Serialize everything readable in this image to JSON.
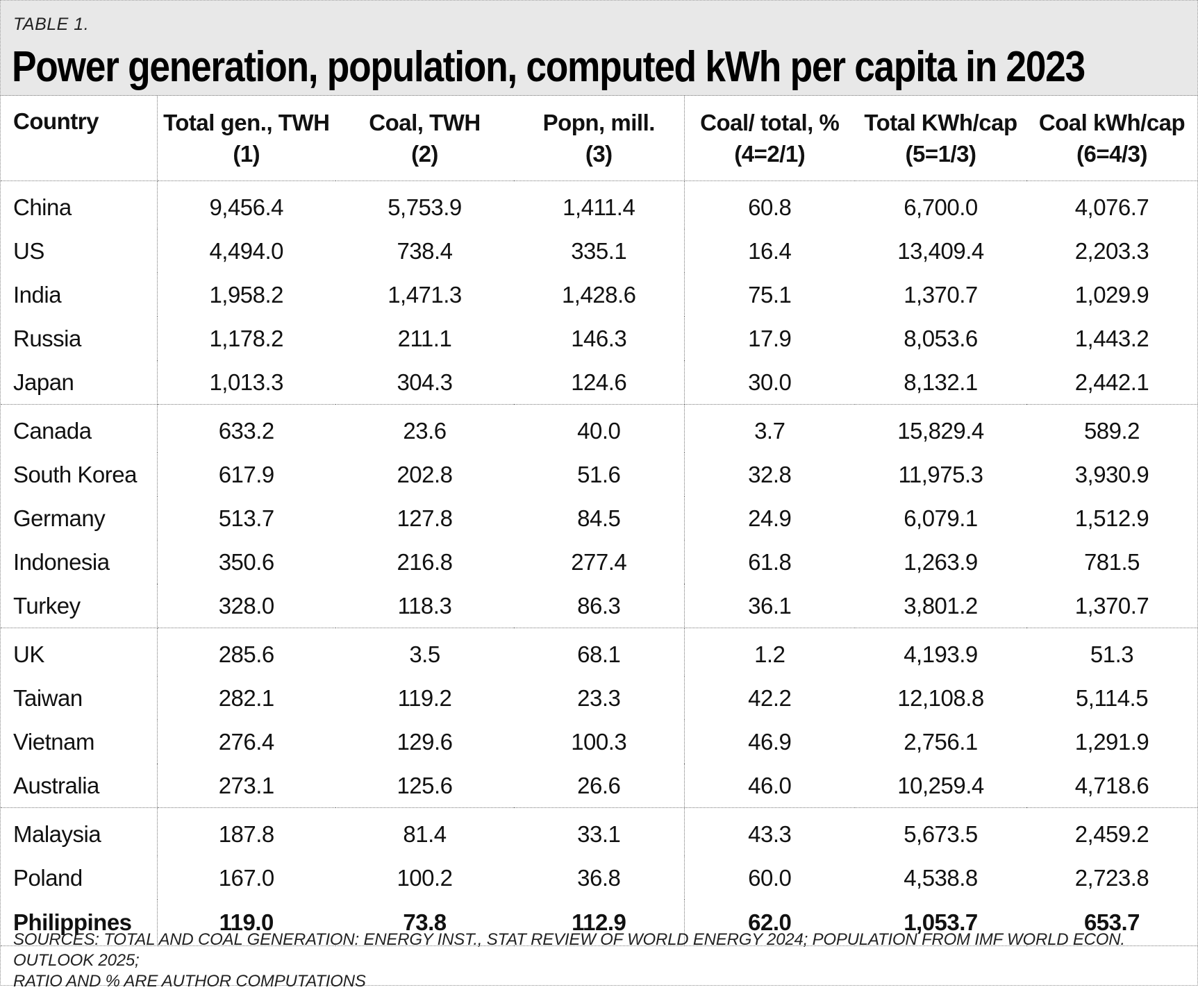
{
  "table_label": "TABLE 1.",
  "title": "Power generation, population, computed kWh per capita in 2023",
  "columns": [
    {
      "line1": "Country",
      "line2": ""
    },
    {
      "line1": "Total gen., TWH",
      "line2": "(1)"
    },
    {
      "line1": "Coal, TWH",
      "line2": "(2)"
    },
    {
      "line1": "Popn, mill.",
      "line2": "(3)"
    },
    {
      "line1": "Coal/ total, %",
      "line2": "(4=2/1)"
    },
    {
      "line1": "Total KWh/cap",
      "line2": "(5=1/3)"
    },
    {
      "line1": "Coal kWh/cap",
      "line2": "(6=4/3)"
    }
  ],
  "rows": [
    [
      "China",
      "9,456.4",
      "5,753.9",
      "1,411.4",
      "60.8",
      "6,700.0",
      "4,076.7"
    ],
    [
      "US",
      "4,494.0",
      "738.4",
      "335.1",
      "16.4",
      "13,409.4",
      "2,203.3"
    ],
    [
      "India",
      "1,958.2",
      "1,471.3",
      "1,428.6",
      "75.1",
      "1,370.7",
      "1,029.9"
    ],
    [
      "Russia",
      "1,178.2",
      "211.1",
      "146.3",
      "17.9",
      "8,053.6",
      "1,443.2"
    ],
    [
      "Japan",
      "1,013.3",
      "304.3",
      "124.6",
      "30.0",
      "8,132.1",
      "2,442.1"
    ],
    [
      "Canada",
      "633.2",
      "23.6",
      "40.0",
      "3.7",
      "15,829.4",
      "589.2"
    ],
    [
      "South Korea",
      "617.9",
      "202.8",
      "51.6",
      "32.8",
      "11,975.3",
      "3,930.9"
    ],
    [
      "Germany",
      "513.7",
      "127.8",
      "84.5",
      "24.9",
      "6,079.1",
      "1,512.9"
    ],
    [
      "Indonesia",
      "350.6",
      "216.8",
      "277.4",
      "61.8",
      "1,263.9",
      "781.5"
    ],
    [
      "Turkey",
      "328.0",
      "118.3",
      "86.3",
      "36.1",
      "3,801.2",
      "1,370.7"
    ],
    [
      "UK",
      "285.6",
      "3.5",
      "68.1",
      "1.2",
      "4,193.9",
      "51.3"
    ],
    [
      "Taiwan",
      "282.1",
      "119.2",
      "23.3",
      "42.2",
      "12,108.8",
      "5,114.5"
    ],
    [
      "Vietnam",
      "276.4",
      "129.6",
      "100.3",
      "46.9",
      "2,756.1",
      "1,291.9"
    ],
    [
      "Australia",
      "273.1",
      "125.6",
      "26.6",
      "46.0",
      "10,259.4",
      "4,718.6"
    ],
    [
      "Malaysia",
      "187.8",
      "81.4",
      "33.1",
      "43.3",
      "5,673.5",
      "2,459.2"
    ],
    [
      "Poland",
      "167.0",
      "100.2",
      "36.8",
      "60.0",
      "4,538.8",
      "2,723.8"
    ],
    [
      "Philippines",
      "119.0",
      "73.8",
      "112.9",
      "62.0",
      "1,053.7",
      "653.7"
    ]
  ],
  "sources_line1": "SOURCES: TOTAL AND COAL GENERATION: ENERGY INST., STAT REVIEW OF WORLD ENERGY 2024; POPULATION FROM IMF WORLD ECON. OUTLOOK 2025;",
  "sources_line2": "RATIO AND % ARE AUTHOR COMPUTATIONS"
}
